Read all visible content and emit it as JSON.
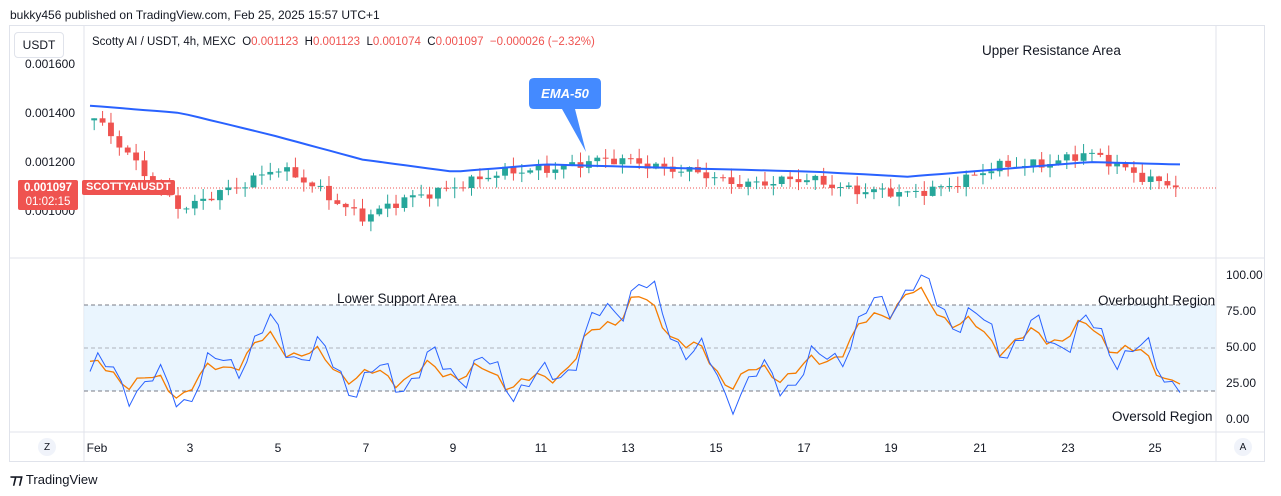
{
  "header": {
    "published": "bukky456 published on TradingView.com, Feb 25, 2025 15:57 UTC+1"
  },
  "toolbar": {
    "currency": "USDT"
  },
  "symbol": {
    "title": "Scotty AI / USDT, 4h, MEXC",
    "o_label": "O",
    "o": "0.001123",
    "h_label": "H",
    "h": "0.001123",
    "l_label": "L",
    "l": "0.001074",
    "c_label": "C",
    "c": "0.001097",
    "change": "−0.000026 (−2.32%)"
  },
  "badges": {
    "last_price": "0.001097",
    "countdown": "01:02:15",
    "ticker": "SCOTTYAIUSDT"
  },
  "annotations": {
    "ema_label": "EMA-50",
    "upper_resistance": "Upper Resistance Area",
    "lower_support": "Lower Support Area",
    "overbought": "Overbought Region",
    "oversold": "Oversold Region"
  },
  "price_axis": [
    "0.001600",
    "0.001400",
    "0.001200",
    "0.001000"
  ],
  "stoch_axis": [
    "100.00",
    "75.00",
    "50.00",
    "25.00",
    "0.00"
  ],
  "time_axis": [
    "Feb",
    "3",
    "5",
    "7",
    "9",
    "11",
    "13",
    "15",
    "17",
    "19",
    "21",
    "23",
    "25"
  ],
  "footer": {
    "brand": "TradingView",
    "left_button": "Z",
    "right_button": "A"
  },
  "colors": {
    "up": "#26a69a",
    "down": "#ef5350",
    "ema": "#2962ff",
    "k_line": "#2962ff",
    "d_line": "#f57c00",
    "band": "#e3f2fd"
  },
  "chart_data": [
    {
      "type": "line",
      "title": "Scotty AI / USDT, 4h, MEXC",
      "series": [
        {
          "name": "EMA-50",
          "x": [
            "Feb",
            "3",
            "5",
            "7",
            "9",
            "11",
            "13",
            "15",
            "17",
            "19",
            "21",
            "23",
            "25"
          ],
          "values": [
            0.00143,
            0.0014,
            0.00131,
            0.00121,
            0.00116,
            0.00119,
            0.00118,
            0.00117,
            0.00116,
            0.00114,
            0.00117,
            0.0012,
            0.00119
          ]
        }
      ],
      "close_approx": [
        0.00137,
        0.001,
        0.00118,
        0.00098,
        0.00111,
        0.00118,
        0.00121,
        0.00112,
        0.00112,
        0.00106,
        0.00117,
        0.00123,
        0.0011
      ],
      "last_close": 0.001097,
      "ylim": [
        0.00088,
        0.00167
      ],
      "ytick_labels": [
        "0.001600",
        "0.001400",
        "0.001200",
        "0.001000"
      ]
    },
    {
      "type": "line",
      "ylim": [
        0,
        100
      ],
      "levels": [
        20,
        50,
        80
      ],
      "series": [
        {
          "x": [
            "Feb",
            "3",
            "5",
            "7",
            "9",
            "11",
            "13",
            "15",
            "17",
            "19",
            "21",
            "23",
            "25"
          ],
          "values": [
            33,
            18,
            60,
            25,
            38,
            22,
            95,
            20,
            35,
            95,
            55,
            60,
            30
          ]
        },
        {
          "x": [
            "Feb",
            "3",
            "5",
            "7",
            "9",
            "11",
            "13",
            "15",
            "17",
            "19",
            "21",
            "23",
            "25"
          ],
          "values": [
            35,
            20,
            55,
            28,
            34,
            24,
            85,
            28,
            36,
            88,
            52,
            62,
            27
          ]
        }
      ]
    }
  ]
}
